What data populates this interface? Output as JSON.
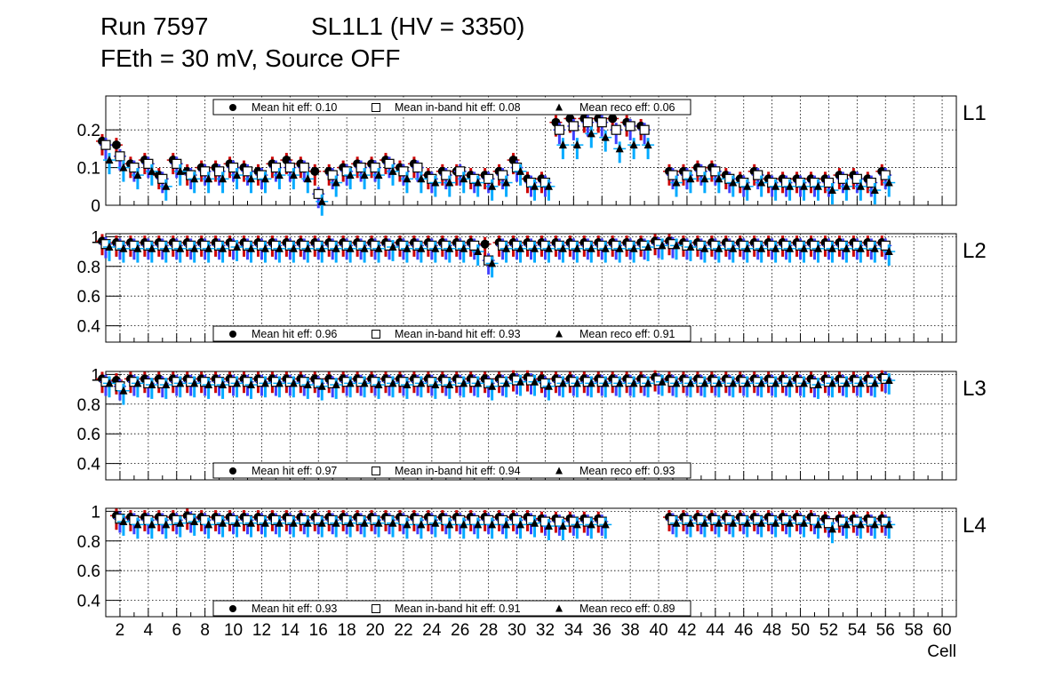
{
  "header": {
    "run": "Run 7597",
    "sl": "SL1L1 (HV = 3350)",
    "feth": "FEth = 30 mV, Source OFF"
  },
  "colors": {
    "hit": "#000000",
    "inband": "#000000",
    "reco": "#000000",
    "err_hit": "#cc0000",
    "err_inband": "#4040ff",
    "err_reco": "#00aaff",
    "grid": "#000000"
  },
  "chart_data": [
    {
      "type": "scatter",
      "panel_label": "L1",
      "xlabel": "",
      "ylabel": "",
      "xlim": [
        1,
        61
      ],
      "ylim": [
        0,
        0.29
      ],
      "yticks": [
        0,
        0.1,
        0.2
      ],
      "ytick_labels": [
        "0",
        "0.1",
        "0.2"
      ],
      "grid": true,
      "legend_position": "top",
      "legend": [
        "Mean hit  eff: 0.10",
        "Mean in-band hit eff: 0.08",
        "Mean reco eff: 0.06"
      ],
      "x": [
        1,
        2,
        3,
        4,
        5,
        6,
        7,
        8,
        9,
        10,
        11,
        12,
        13,
        14,
        15,
        16,
        17,
        18,
        19,
        20,
        21,
        22,
        23,
        24,
        25,
        26,
        27,
        28,
        29,
        30,
        31,
        32,
        33,
        34,
        35,
        36,
        37,
        38,
        39,
        40,
        41,
        42,
        43,
        44,
        45,
        46,
        47,
        48,
        49,
        50,
        51,
        52,
        53,
        54,
        55,
        56
      ],
      "series": [
        {
          "name": "Mean hit  eff: 0.10",
          "marker": "circle",
          "values": [
            0.17,
            0.16,
            0.11,
            0.12,
            0.08,
            0.12,
            0.09,
            0.1,
            0.1,
            0.11,
            0.1,
            0.09,
            0.11,
            0.12,
            0.11,
            0.09,
            0.09,
            0.1,
            0.11,
            0.11,
            0.12,
            0.1,
            0.11,
            0.08,
            0.09,
            0.09,
            0.08,
            0.08,
            0.09,
            0.12,
            0.07,
            0.07,
            0.22,
            0.23,
            0.23,
            0.23,
            0.23,
            0.22,
            0.21,
            null,
            0.09,
            0.09,
            0.1,
            0.1,
            0.08,
            0.07,
            0.09,
            0.07,
            0.07,
            0.07,
            0.07,
            0.07,
            0.08,
            0.08,
            0.07,
            0.09
          ]
        },
        {
          "name": "Mean in-band hit eff: 0.08",
          "marker": "open-square",
          "values": [
            0.16,
            0.13,
            0.1,
            0.11,
            0.07,
            0.11,
            0.08,
            0.09,
            0.09,
            0.1,
            0.09,
            0.08,
            0.1,
            0.1,
            0.1,
            0.03,
            0.08,
            0.09,
            0.1,
            0.1,
            0.11,
            0.09,
            0.1,
            0.07,
            0.08,
            0.09,
            0.07,
            0.07,
            0.08,
            0.1,
            0.06,
            0.06,
            0.2,
            0.21,
            0.22,
            0.22,
            0.2,
            0.21,
            0.2,
            null,
            0.08,
            0.08,
            0.09,
            0.09,
            0.07,
            0.06,
            0.08,
            0.06,
            0.06,
            0.06,
            0.06,
            0.06,
            0.07,
            0.07,
            0.06,
            0.08
          ]
        },
        {
          "name": "Mean reco eff: 0.06",
          "marker": "filled-triangle",
          "values": [
            0.12,
            0.1,
            0.08,
            0.09,
            0.05,
            0.09,
            0.07,
            0.07,
            0.07,
            0.08,
            0.07,
            0.07,
            0.08,
            0.08,
            0.07,
            0.01,
            0.06,
            0.08,
            0.08,
            0.08,
            0.09,
            0.07,
            0.07,
            0.06,
            0.06,
            0.07,
            0.06,
            0.05,
            0.06,
            0.09,
            0.05,
            0.05,
            0.16,
            0.16,
            0.19,
            0.18,
            0.15,
            0.16,
            0.16,
            null,
            0.06,
            0.07,
            0.07,
            0.07,
            0.06,
            0.05,
            0.06,
            0.05,
            0.05,
            0.05,
            0.05,
            0.04,
            0.05,
            0.05,
            0.04,
            0.06
          ]
        }
      ]
    },
    {
      "type": "scatter",
      "panel_label": "L2",
      "xlabel": "",
      "ylabel": "",
      "xlim": [
        1,
        61
      ],
      "ylim": [
        0.29,
        1.02
      ],
      "yticks": [
        0.4,
        0.6,
        0.8,
        1
      ],
      "ytick_labels": [
        "0.4",
        "0.6",
        "0.8",
        "1"
      ],
      "grid": true,
      "legend_position": "bottom",
      "legend": [
        "Mean hit  eff: 0.96",
        "Mean in-band hit eff: 0.93",
        "Mean reco eff: 0.91"
      ],
      "x": [
        1,
        2,
        3,
        4,
        5,
        6,
        7,
        8,
        9,
        10,
        11,
        12,
        13,
        14,
        15,
        16,
        17,
        18,
        19,
        20,
        21,
        22,
        23,
        24,
        25,
        26,
        27,
        28,
        29,
        30,
        31,
        32,
        33,
        34,
        35,
        36,
        37,
        38,
        39,
        40,
        41,
        42,
        43,
        44,
        45,
        46,
        47,
        48,
        49,
        50,
        51,
        52,
        53,
        54,
        55,
        56
      ],
      "series": [
        {
          "name": "Mean hit  eff: 0.96",
          "marker": "circle",
          "values": [
            0.97,
            0.96,
            0.96,
            0.96,
            0.96,
            0.96,
            0.96,
            0.96,
            0.96,
            0.96,
            0.96,
            0.96,
            0.96,
            0.96,
            0.96,
            0.96,
            0.96,
            0.96,
            0.96,
            0.96,
            0.96,
            0.96,
            0.96,
            0.96,
            0.96,
            0.96,
            0.96,
            0.95,
            0.96,
            0.96,
            0.96,
            0.96,
            0.96,
            0.96,
            0.96,
            0.96,
            0.96,
            0.96,
            0.96,
            0.97,
            0.97,
            0.96,
            0.96,
            0.96,
            0.96,
            0.96,
            0.96,
            0.96,
            0.96,
            0.96,
            0.96,
            0.96,
            0.96,
            0.96,
            0.96,
            0.96
          ]
        },
        {
          "name": "Mean in-band hit eff: 0.93",
          "marker": "open-square",
          "values": [
            0.95,
            0.94,
            0.94,
            0.94,
            0.94,
            0.94,
            0.94,
            0.94,
            0.94,
            0.94,
            0.94,
            0.94,
            0.94,
            0.94,
            0.94,
            0.94,
            0.94,
            0.94,
            0.94,
            0.94,
            0.94,
            0.94,
            0.94,
            0.94,
            0.94,
            0.94,
            0.94,
            0.84,
            0.94,
            0.94,
            0.94,
            0.94,
            0.94,
            0.94,
            0.94,
            0.94,
            0.94,
            0.94,
            0.94,
            0.95,
            0.95,
            0.94,
            0.94,
            0.94,
            0.94,
            0.94,
            0.94,
            0.94,
            0.94,
            0.94,
            0.94,
            0.94,
            0.94,
            0.94,
            0.94,
            0.94
          ]
        },
        {
          "name": "Mean reco eff: 0.91",
          "marker": "filled-triangle",
          "values": [
            0.93,
            0.92,
            0.92,
            0.92,
            0.92,
            0.92,
            0.92,
            0.92,
            0.92,
            0.93,
            0.92,
            0.92,
            0.92,
            0.92,
            0.92,
            0.92,
            0.92,
            0.92,
            0.92,
            0.92,
            0.93,
            0.92,
            0.92,
            0.92,
            0.92,
            0.92,
            0.9,
            0.82,
            0.92,
            0.92,
            0.92,
            0.92,
            0.92,
            0.92,
            0.92,
            0.92,
            0.92,
            0.92,
            0.93,
            0.94,
            0.94,
            0.93,
            0.92,
            0.92,
            0.92,
            0.92,
            0.92,
            0.92,
            0.92,
            0.92,
            0.92,
            0.92,
            0.92,
            0.92,
            0.92,
            0.9
          ]
        }
      ]
    },
    {
      "type": "scatter",
      "panel_label": "L3",
      "xlabel": "",
      "ylabel": "",
      "xlim": [
        1,
        61
      ],
      "ylim": [
        0.29,
        1.02
      ],
      "yticks": [
        0.4,
        0.6,
        0.8,
        1
      ],
      "ytick_labels": [
        "0.4",
        "0.6",
        "0.8",
        "1"
      ],
      "grid": true,
      "legend_position": "bottom",
      "legend": [
        "Mean hit  eff: 0.97",
        "Mean in-band hit eff: 0.94",
        "Mean reco eff: 0.93"
      ],
      "x": [
        1,
        2,
        3,
        4,
        5,
        6,
        7,
        8,
        9,
        10,
        11,
        12,
        13,
        14,
        15,
        16,
        17,
        18,
        19,
        20,
        21,
        22,
        23,
        24,
        25,
        26,
        27,
        28,
        29,
        30,
        31,
        32,
        33,
        34,
        35,
        36,
        37,
        38,
        39,
        40,
        41,
        42,
        43,
        44,
        45,
        46,
        47,
        48,
        49,
        50,
        51,
        52,
        53,
        54,
        55,
        56
      ],
      "series": [
        {
          "name": "Mean hit  eff: 0.97",
          "marker": "circle",
          "values": [
            0.97,
            0.96,
            0.97,
            0.97,
            0.97,
            0.97,
            0.97,
            0.97,
            0.97,
            0.97,
            0.97,
            0.97,
            0.97,
            0.97,
            0.97,
            0.97,
            0.97,
            0.97,
            0.97,
            0.97,
            0.97,
            0.97,
            0.97,
            0.97,
            0.97,
            0.97,
            0.97,
            0.97,
            0.97,
            0.98,
            0.98,
            0.97,
            0.97,
            0.97,
            0.97,
            0.97,
            0.97,
            0.97,
            0.97,
            0.98,
            0.97,
            0.97,
            0.97,
            0.97,
            0.97,
            0.97,
            0.97,
            0.97,
            0.97,
            0.97,
            0.97,
            0.97,
            0.97,
            0.97,
            0.97,
            0.98
          ]
        },
        {
          "name": "Mean in-band hit eff: 0.94",
          "marker": "open-square",
          "values": [
            0.95,
            0.92,
            0.95,
            0.94,
            0.94,
            0.95,
            0.95,
            0.95,
            0.95,
            0.95,
            0.95,
            0.95,
            0.95,
            0.95,
            0.95,
            0.94,
            0.94,
            0.95,
            0.95,
            0.95,
            0.95,
            0.95,
            0.95,
            0.95,
            0.95,
            0.95,
            0.95,
            0.94,
            0.95,
            0.96,
            0.96,
            0.94,
            0.95,
            0.95,
            0.95,
            0.95,
            0.95,
            0.95,
            0.95,
            0.96,
            0.95,
            0.95,
            0.95,
            0.95,
            0.95,
            0.95,
            0.95,
            0.95,
            0.95,
            0.95,
            0.94,
            0.95,
            0.95,
            0.95,
            0.95,
            0.97
          ]
        },
        {
          "name": "Mean reco eff: 0.93",
          "marker": "filled-triangle",
          "values": [
            0.94,
            0.89,
            0.94,
            0.93,
            0.93,
            0.94,
            0.94,
            0.93,
            0.93,
            0.94,
            0.93,
            0.94,
            0.94,
            0.94,
            0.93,
            0.92,
            0.93,
            0.94,
            0.94,
            0.93,
            0.94,
            0.93,
            0.94,
            0.93,
            0.93,
            0.94,
            0.94,
            0.92,
            0.94,
            0.95,
            0.95,
            0.92,
            0.94,
            0.94,
            0.94,
            0.94,
            0.94,
            0.94,
            0.94,
            0.95,
            0.94,
            0.94,
            0.94,
            0.94,
            0.94,
            0.94,
            0.94,
            0.94,
            0.94,
            0.94,
            0.93,
            0.94,
            0.94,
            0.94,
            0.94,
            0.96
          ]
        }
      ]
    },
    {
      "type": "scatter",
      "panel_label": "L4",
      "xlabel": "Cell",
      "ylabel": "",
      "xlim": [
        1,
        61
      ],
      "ylim": [
        0.29,
        1.02
      ],
      "yticks": [
        0.4,
        0.6,
        0.8,
        1
      ],
      "ytick_labels": [
        "0.4",
        "0.6",
        "0.8",
        "1"
      ],
      "xticks": [
        2,
        4,
        6,
        8,
        10,
        12,
        14,
        16,
        18,
        20,
        22,
        24,
        26,
        28,
        30,
        32,
        34,
        36,
        38,
        40,
        42,
        44,
        46,
        48,
        50,
        52,
        54,
        56,
        58,
        60
      ],
      "grid": true,
      "legend_position": "bottom",
      "legend": [
        "Mean hit  eff: 0.93",
        "Mean in-band hit eff: 0.91",
        "Mean reco eff: 0.89"
      ],
      "x": [
        2,
        3,
        4,
        5,
        6,
        7,
        8,
        9,
        10,
        11,
        12,
        13,
        14,
        15,
        16,
        17,
        18,
        19,
        20,
        21,
        22,
        23,
        24,
        25,
        26,
        27,
        28,
        29,
        30,
        31,
        32,
        33,
        34,
        35,
        36,
        41,
        42,
        43,
        44,
        45,
        46,
        47,
        48,
        49,
        50,
        51,
        52,
        53,
        54,
        55,
        56
      ],
      "series": [
        {
          "name": "Mean hit  eff: 0.93",
          "marker": "circle",
          "values": [
            0.97,
            0.96,
            0.96,
            0.96,
            0.96,
            0.97,
            0.96,
            0.96,
            0.96,
            0.96,
            0.96,
            0.96,
            0.96,
            0.96,
            0.96,
            0.96,
            0.96,
            0.96,
            0.96,
            0.96,
            0.96,
            0.96,
            0.96,
            0.96,
            0.96,
            0.96,
            0.96,
            0.96,
            0.96,
            0.96,
            0.95,
            0.95,
            0.95,
            0.95,
            0.95,
            0.96,
            0.96,
            0.96,
            0.96,
            0.96,
            0.96,
            0.96,
            0.96,
            0.96,
            0.96,
            0.96,
            0.95,
            0.95,
            0.95,
            0.95,
            0.95
          ]
        },
        {
          "name": "Mean in-band hit eff: 0.91",
          "marker": "open-square",
          "values": [
            0.95,
            0.94,
            0.94,
            0.94,
            0.94,
            0.95,
            0.94,
            0.94,
            0.94,
            0.94,
            0.94,
            0.94,
            0.94,
            0.94,
            0.94,
            0.94,
            0.94,
            0.94,
            0.94,
            0.94,
            0.94,
            0.94,
            0.94,
            0.94,
            0.94,
            0.94,
            0.94,
            0.94,
            0.94,
            0.94,
            0.93,
            0.93,
            0.93,
            0.93,
            0.93,
            0.94,
            0.94,
            0.94,
            0.94,
            0.94,
            0.94,
            0.94,
            0.94,
            0.94,
            0.94,
            0.94,
            0.92,
            0.93,
            0.93,
            0.93,
            0.93
          ]
        },
        {
          "name": "Mean reco eff: 0.89",
          "marker": "filled-triangle",
          "values": [
            0.93,
            0.91,
            0.91,
            0.91,
            0.92,
            0.93,
            0.91,
            0.92,
            0.92,
            0.92,
            0.92,
            0.92,
            0.92,
            0.92,
            0.92,
            0.92,
            0.92,
            0.92,
            0.92,
            0.92,
            0.91,
            0.91,
            0.92,
            0.91,
            0.91,
            0.91,
            0.91,
            0.91,
            0.91,
            0.92,
            0.9,
            0.9,
            0.91,
            0.91,
            0.91,
            0.92,
            0.92,
            0.92,
            0.92,
            0.92,
            0.92,
            0.92,
            0.92,
            0.92,
            0.92,
            0.91,
            0.88,
            0.91,
            0.91,
            0.91,
            0.91
          ]
        }
      ]
    }
  ]
}
